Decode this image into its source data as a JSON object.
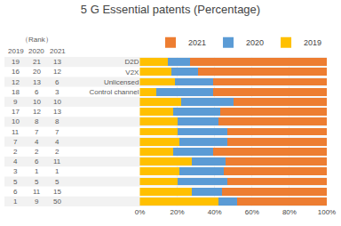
{
  "chart_data": {
    "type": "bar",
    "title": "5 G Essential patents (Percentage)",
    "orientation": "horizontal",
    "stacked": true,
    "categories": [
      "D2D",
      "V2X",
      "Unlicensed",
      "Control channel",
      null,
      null,
      null,
      null,
      null,
      null,
      null,
      null,
      null,
      null,
      null
    ],
    "series": [
      {
        "name": "2019",
        "color": "#FFC000",
        "values": [
          15,
          17,
          19,
          9,
          22,
          18,
          20,
          20,
          21,
          18,
          28,
          21,
          20,
          28,
          42
        ],
        "ranks": [
          19,
          16,
          12,
          18,
          9,
          17,
          10,
          11,
          7,
          2,
          4,
          3,
          5,
          6,
          1
        ]
      },
      {
        "name": "2020",
        "color": "#5B9BD5",
        "values": [
          12,
          14,
          20,
          30,
          28,
          25,
          22,
          27,
          26,
          21,
          18,
          24,
          27,
          16,
          10
        ],
        "ranks": [
          21,
          20,
          13,
          6,
          10,
          12,
          8,
          7,
          4,
          2,
          6,
          1,
          5,
          11,
          9
        ]
      },
      {
        "name": "2021",
        "color": "#ED7D31",
        "values": [
          73,
          69,
          61,
          61,
          50,
          57,
          58,
          53,
          53,
          61,
          54,
          55,
          53,
          56,
          48
        ],
        "ranks": [
          13,
          12,
          6,
          3,
          10,
          13,
          8,
          7,
          4,
          2,
          11,
          1,
          5,
          15,
          50
        ]
      }
    ],
    "rank_title": "（Rank）",
    "xlim": [
      0,
      100
    ],
    "xticks": [
      {
        "value": 0,
        "label": "0%"
      },
      {
        "value": 20,
        "label": "20%"
      },
      {
        "value": 40,
        "label": "40%"
      },
      {
        "value": 60,
        "label": "60%"
      },
      {
        "value": 80,
        "label": "80%"
      },
      {
        "value": 100,
        "label": "100%"
      }
    ],
    "grid": true,
    "legend": "top"
  }
}
